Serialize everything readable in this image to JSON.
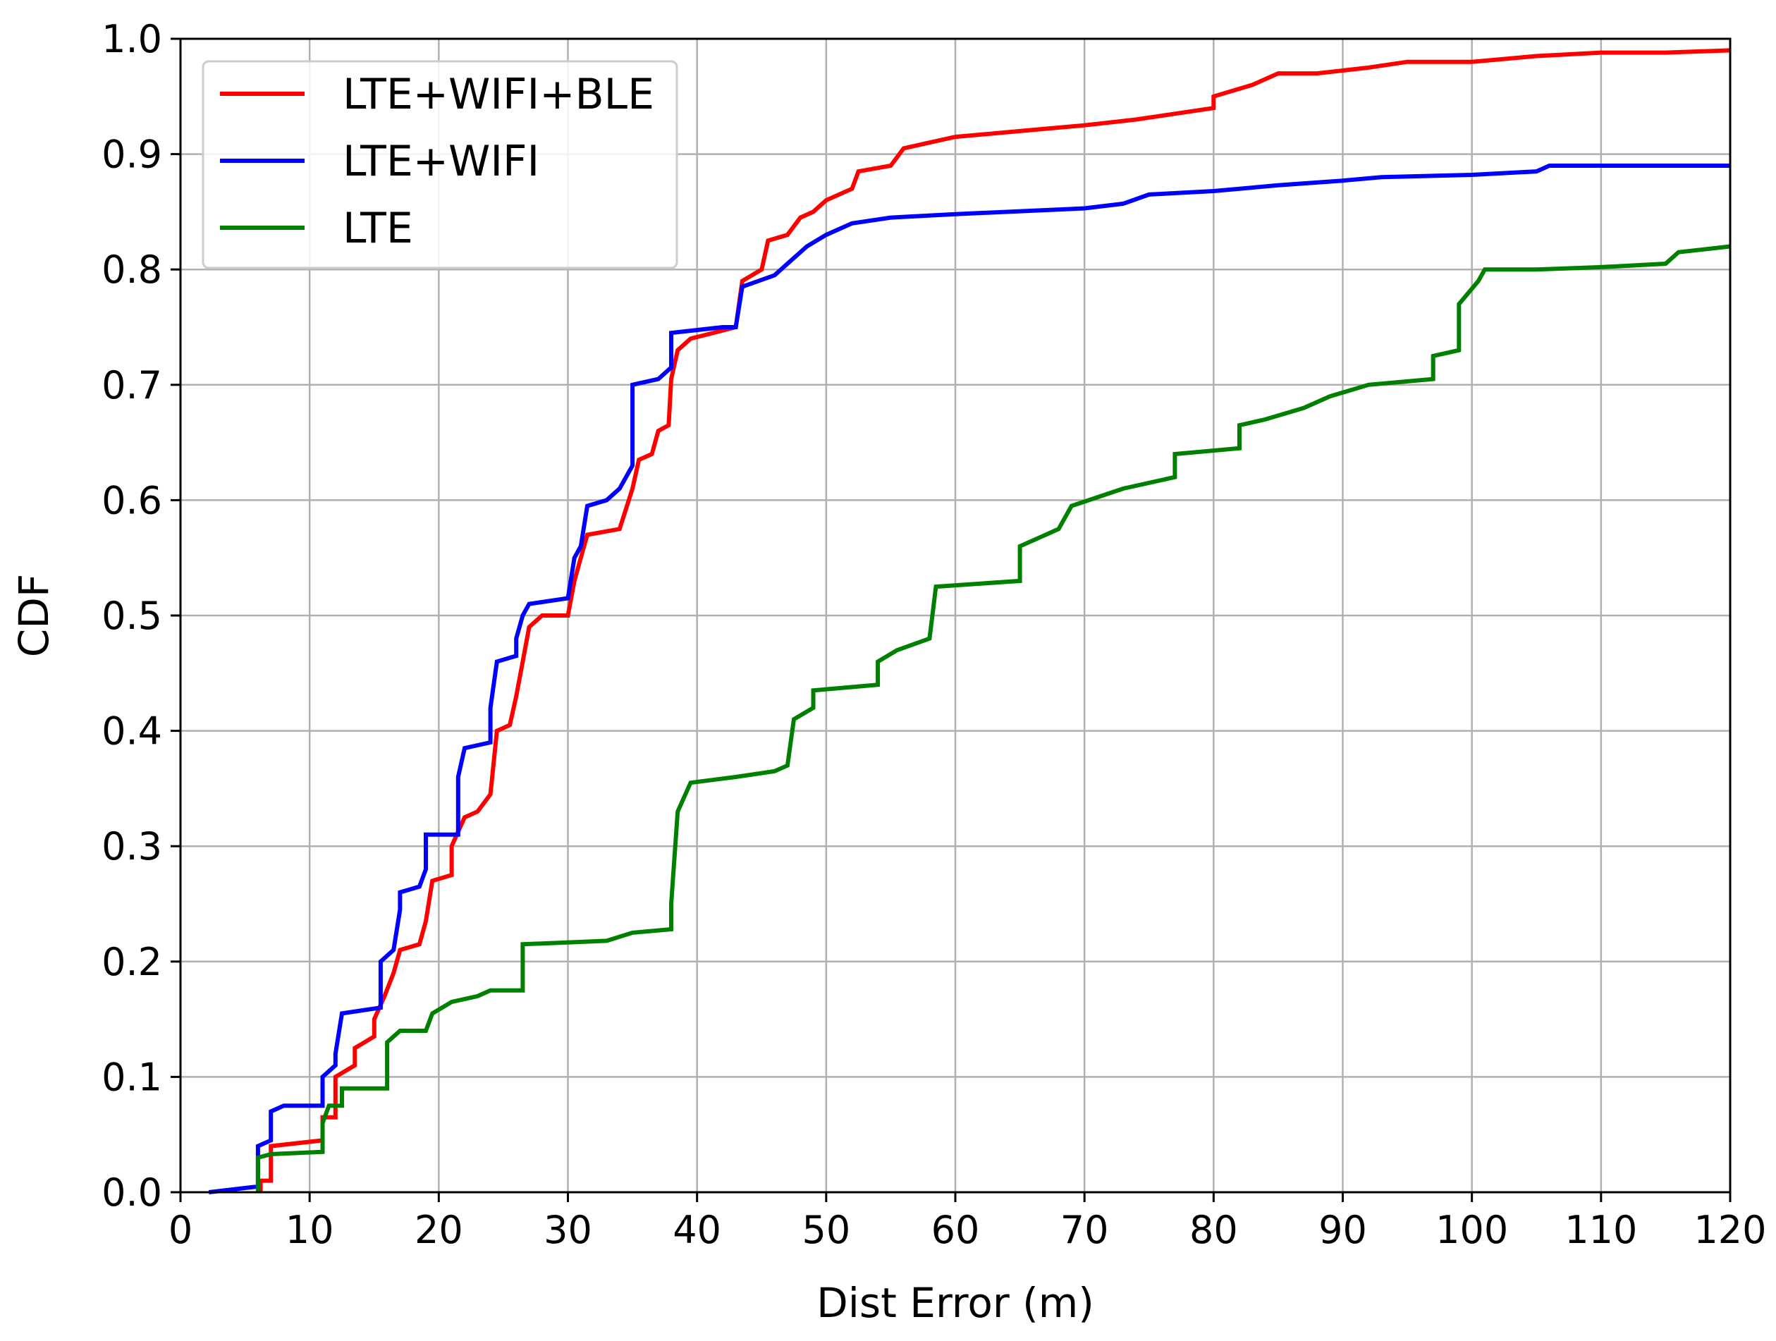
{
  "chart_data": {
    "type": "line",
    "title": "",
    "xlabel": "Dist Error (m)",
    "ylabel": "CDF",
    "xlim": [
      0,
      120
    ],
    "ylim": [
      0.0,
      1.0
    ],
    "grid": true,
    "legend_position": "top-left",
    "x_ticks": [
      "0",
      "10",
      "20",
      "30",
      "40",
      "50",
      "60",
      "70",
      "80",
      "90",
      "100",
      "110",
      "120"
    ],
    "y_ticks": [
      "0.0",
      "0.1",
      "0.2",
      "0.3",
      "0.4",
      "0.5",
      "0.6",
      "0.7",
      "0.8",
      "0.9",
      "1.0"
    ],
    "series": [
      {
        "name": "LTE+WIFI+BLE",
        "color": "#ff0000",
        "points": [
          [
            6.2,
            0.0
          ],
          [
            6.2,
            0.01
          ],
          [
            7.0,
            0.01
          ],
          [
            7.0,
            0.04
          ],
          [
            11.0,
            0.045
          ],
          [
            11.0,
            0.065
          ],
          [
            12.0,
            0.065
          ],
          [
            12.0,
            0.1
          ],
          [
            13.5,
            0.11
          ],
          [
            13.5,
            0.125
          ],
          [
            15.0,
            0.135
          ],
          [
            15.0,
            0.15
          ],
          [
            15.8,
            0.17
          ],
          [
            16.5,
            0.19
          ],
          [
            17.0,
            0.21
          ],
          [
            18.5,
            0.215
          ],
          [
            19.0,
            0.235
          ],
          [
            19.5,
            0.27
          ],
          [
            21.0,
            0.275
          ],
          [
            21.0,
            0.3
          ],
          [
            22.0,
            0.325
          ],
          [
            23.0,
            0.33
          ],
          [
            24.0,
            0.345
          ],
          [
            24.5,
            0.4
          ],
          [
            25.5,
            0.405
          ],
          [
            26.0,
            0.43
          ],
          [
            26.5,
            0.46
          ],
          [
            27.0,
            0.49
          ],
          [
            28.0,
            0.5
          ],
          [
            30.0,
            0.5
          ],
          [
            30.5,
            0.53
          ],
          [
            31.0,
            0.55
          ],
          [
            31.5,
            0.57
          ],
          [
            34.0,
            0.575
          ],
          [
            35.0,
            0.61
          ],
          [
            35.5,
            0.635
          ],
          [
            36.5,
            0.64
          ],
          [
            37.0,
            0.66
          ],
          [
            37.8,
            0.665
          ],
          [
            38.0,
            0.705
          ],
          [
            38.5,
            0.73
          ],
          [
            39.5,
            0.74
          ],
          [
            43.0,
            0.75
          ],
          [
            43.5,
            0.79
          ],
          [
            45.0,
            0.8
          ],
          [
            45.5,
            0.825
          ],
          [
            47.0,
            0.83
          ],
          [
            48.0,
            0.845
          ],
          [
            49.0,
            0.85
          ],
          [
            50.0,
            0.86
          ],
          [
            52.0,
            0.87
          ],
          [
            52.5,
            0.885
          ],
          [
            55.0,
            0.89
          ],
          [
            56.0,
            0.905
          ],
          [
            58.0,
            0.91
          ],
          [
            60.0,
            0.915
          ],
          [
            65.0,
            0.92
          ],
          [
            70.0,
            0.925
          ],
          [
            74.0,
            0.93
          ],
          [
            80.0,
            0.94
          ],
          [
            80.0,
            0.95
          ],
          [
            83.0,
            0.96
          ],
          [
            85.0,
            0.97
          ],
          [
            88.0,
            0.97
          ],
          [
            92.0,
            0.975
          ],
          [
            95.0,
            0.98
          ],
          [
            100.0,
            0.98
          ],
          [
            105.0,
            0.985
          ],
          [
            110.0,
            0.988
          ],
          [
            115.0,
            0.988
          ],
          [
            120.0,
            0.99
          ]
        ]
      },
      {
        "name": "LTE+WIFI",
        "color": "#0000ff",
        "points": [
          [
            2.2,
            0.0
          ],
          [
            6.0,
            0.005
          ],
          [
            6.0,
            0.04
          ],
          [
            7.0,
            0.045
          ],
          [
            7.0,
            0.07
          ],
          [
            8.0,
            0.075
          ],
          [
            11.0,
            0.075
          ],
          [
            11.0,
            0.1
          ],
          [
            12.0,
            0.11
          ],
          [
            12.0,
            0.12
          ],
          [
            12.5,
            0.155
          ],
          [
            15.5,
            0.16
          ],
          [
            15.5,
            0.2
          ],
          [
            16.5,
            0.21
          ],
          [
            17.0,
            0.245
          ],
          [
            17.0,
            0.26
          ],
          [
            18.5,
            0.265
          ],
          [
            19.0,
            0.28
          ],
          [
            19.0,
            0.31
          ],
          [
            21.5,
            0.31
          ],
          [
            21.5,
            0.36
          ],
          [
            22.0,
            0.385
          ],
          [
            24.0,
            0.39
          ],
          [
            24.0,
            0.42
          ],
          [
            24.5,
            0.46
          ],
          [
            26.0,
            0.465
          ],
          [
            26.0,
            0.48
          ],
          [
            26.5,
            0.5
          ],
          [
            27.0,
            0.51
          ],
          [
            30.0,
            0.515
          ],
          [
            30.5,
            0.55
          ],
          [
            31.0,
            0.56
          ],
          [
            31.5,
            0.595
          ],
          [
            33.0,
            0.6
          ],
          [
            34.0,
            0.61
          ],
          [
            35.0,
            0.63
          ],
          [
            35.0,
            0.7
          ],
          [
            37.0,
            0.705
          ],
          [
            38.0,
            0.715
          ],
          [
            38.0,
            0.745
          ],
          [
            42.0,
            0.75
          ],
          [
            43.0,
            0.75
          ],
          [
            43.5,
            0.785
          ],
          [
            46.0,
            0.795
          ],
          [
            47.0,
            0.805
          ],
          [
            48.5,
            0.82
          ],
          [
            50.0,
            0.83
          ],
          [
            52.0,
            0.84
          ],
          [
            55.0,
            0.845
          ],
          [
            60.0,
            0.848
          ],
          [
            70.0,
            0.853
          ],
          [
            73.0,
            0.857
          ],
          [
            75.0,
            0.865
          ],
          [
            80.0,
            0.868
          ],
          [
            85.0,
            0.873
          ],
          [
            90.0,
            0.877
          ],
          [
            93.0,
            0.88
          ],
          [
            100.0,
            0.882
          ],
          [
            105.0,
            0.885
          ],
          [
            106.0,
            0.89
          ],
          [
            120.0,
            0.89
          ]
        ]
      },
      {
        "name": "LTE",
        "color": "#008000",
        "points": [
          [
            6.0,
            0.0
          ],
          [
            6.0,
            0.03
          ],
          [
            7.0,
            0.033
          ],
          [
            11.0,
            0.035
          ],
          [
            11.0,
            0.06
          ],
          [
            11.5,
            0.075
          ],
          [
            12.5,
            0.075
          ],
          [
            12.5,
            0.09
          ],
          [
            16.0,
            0.09
          ],
          [
            16.0,
            0.13
          ],
          [
            17.0,
            0.14
          ],
          [
            19.0,
            0.14
          ],
          [
            19.5,
            0.155
          ],
          [
            21.0,
            0.165
          ],
          [
            23.0,
            0.17
          ],
          [
            24.0,
            0.175
          ],
          [
            26.5,
            0.175
          ],
          [
            26.5,
            0.215
          ],
          [
            33.0,
            0.218
          ],
          [
            35.0,
            0.225
          ],
          [
            38.0,
            0.228
          ],
          [
            38.0,
            0.25
          ],
          [
            38.5,
            0.33
          ],
          [
            39.5,
            0.355
          ],
          [
            43.0,
            0.36
          ],
          [
            46.0,
            0.365
          ],
          [
            47.0,
            0.37
          ],
          [
            47.5,
            0.41
          ],
          [
            49.0,
            0.42
          ],
          [
            49.0,
            0.435
          ],
          [
            54.0,
            0.44
          ],
          [
            54.0,
            0.46
          ],
          [
            55.5,
            0.47
          ],
          [
            58.0,
            0.48
          ],
          [
            58.5,
            0.525
          ],
          [
            65.0,
            0.53
          ],
          [
            65.0,
            0.56
          ],
          [
            67.0,
            0.57
          ],
          [
            68.0,
            0.575
          ],
          [
            69.0,
            0.595
          ],
          [
            73.0,
            0.61
          ],
          [
            77.0,
            0.62
          ],
          [
            77.0,
            0.64
          ],
          [
            82.0,
            0.645
          ],
          [
            82.0,
            0.665
          ],
          [
            84.0,
            0.67
          ],
          [
            87.0,
            0.68
          ],
          [
            89.0,
            0.69
          ],
          [
            92.0,
            0.7
          ],
          [
            97.0,
            0.705
          ],
          [
            97.0,
            0.725
          ],
          [
            99.0,
            0.73
          ],
          [
            99.0,
            0.77
          ],
          [
            100.5,
            0.79
          ],
          [
            101.0,
            0.8
          ],
          [
            105.0,
            0.8
          ],
          [
            110.0,
            0.802
          ],
          [
            115.0,
            0.805
          ],
          [
            116.0,
            0.815
          ],
          [
            120.0,
            0.82
          ]
        ]
      }
    ]
  }
}
